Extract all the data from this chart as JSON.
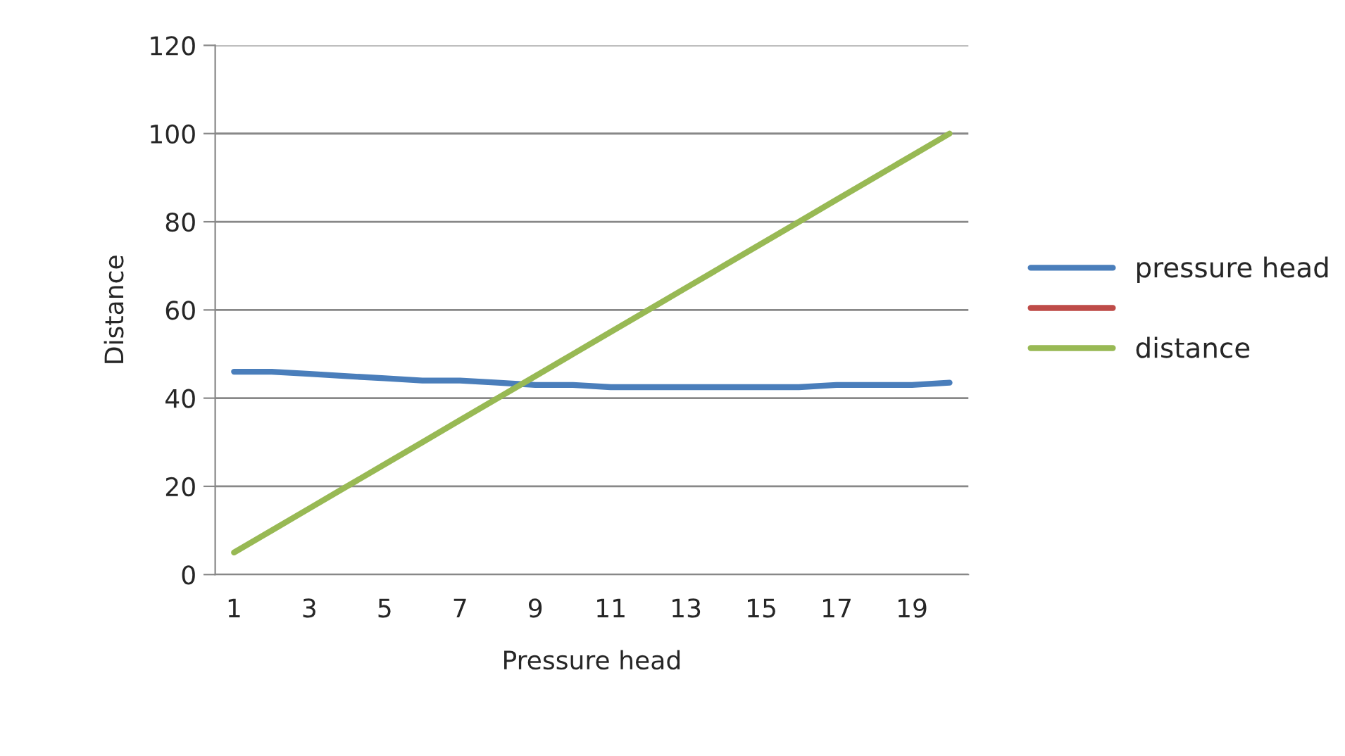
{
  "chart_data": {
    "type": "line",
    "xlabel": "Pressure head",
    "ylabel": "Distance",
    "categories": [
      "1",
      null,
      "3",
      null,
      "5",
      null,
      "7",
      null,
      "9",
      null,
      "11",
      null,
      "13",
      null,
      "15",
      null,
      "17",
      null,
      "19",
      null
    ],
    "series": [
      {
        "name": "pressure head",
        "color": "#4a7ebb",
        "values": [
          46,
          46,
          45.5,
          45,
          44.5,
          44,
          44,
          43.5,
          43,
          43,
          42.5,
          42.5,
          42.5,
          42.5,
          42.5,
          42.5,
          43,
          43,
          43,
          43.5
        ]
      },
      {
        "color": "#be4b48",
        "values": [
          null,
          null,
          null,
          null,
          null,
          null,
          null,
          null,
          null,
          null,
          null,
          null,
          null,
          null,
          null,
          null,
          null,
          null,
          null,
          null
        ]
      },
      {
        "name": "distance",
        "color": "#98b954",
        "values": [
          5,
          10,
          15,
          20,
          25,
          30,
          35,
          40,
          45,
          50,
          55,
          60,
          65,
          70,
          75,
          80,
          85,
          90,
          95,
          100
        ]
      }
    ],
    "ylim": [
      0,
      120
    ],
    "yticks": [
      0,
      20,
      40,
      60,
      80,
      100,
      120
    ],
    "grid": "y",
    "legend": "right",
    "marker": "none",
    "line_style": "solid"
  }
}
